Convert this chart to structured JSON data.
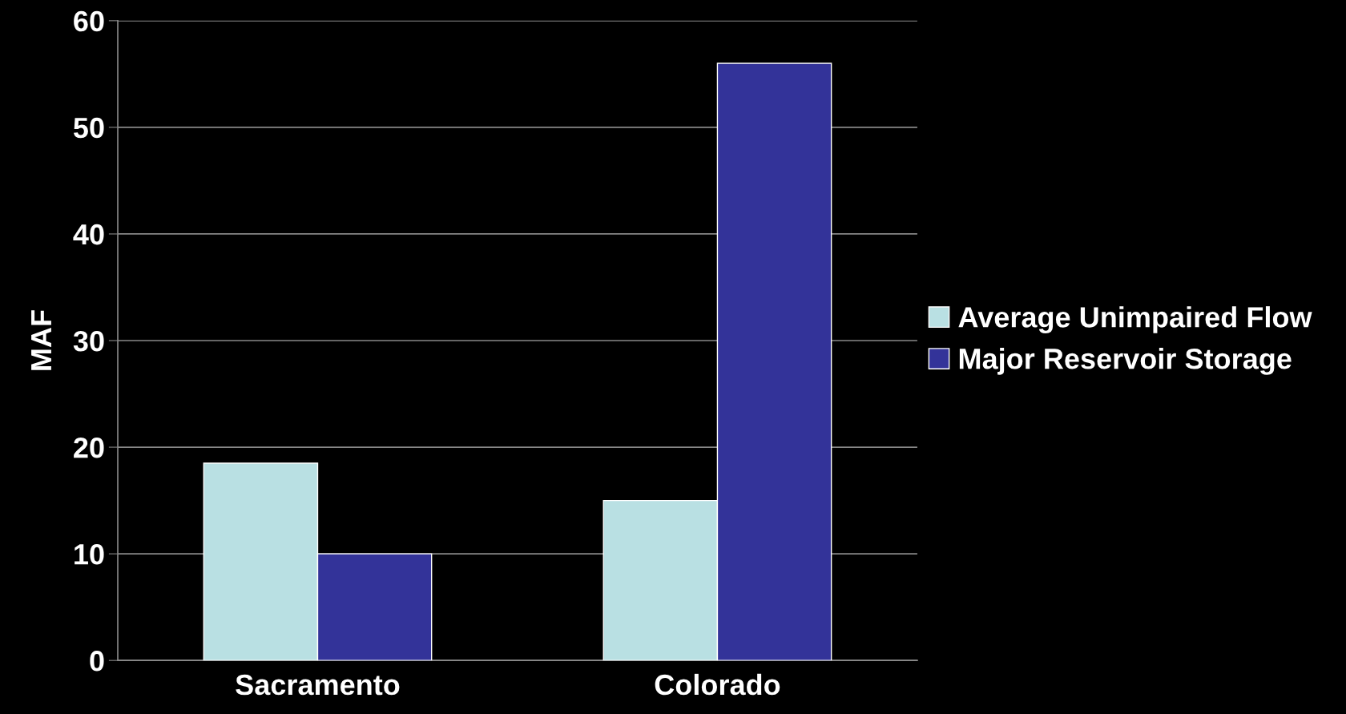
{
  "chart_data": {
    "type": "bar",
    "ylabel": "MAF",
    "categories": [
      "Sacramento",
      "Colorado"
    ],
    "series": [
      {
        "name": "Average Unimpaired Flow",
        "color": "#b9e0e3",
        "values": [
          18.5,
          15.0
        ]
      },
      {
        "name": "Major Reservoir Storage",
        "color": "#333399",
        "values": [
          10.0,
          56.0
        ]
      }
    ],
    "ylim": [
      0,
      60
    ],
    "yticks": [
      0,
      10,
      20,
      30,
      40,
      50,
      60
    ],
    "grid": "y",
    "legend": "right"
  }
}
